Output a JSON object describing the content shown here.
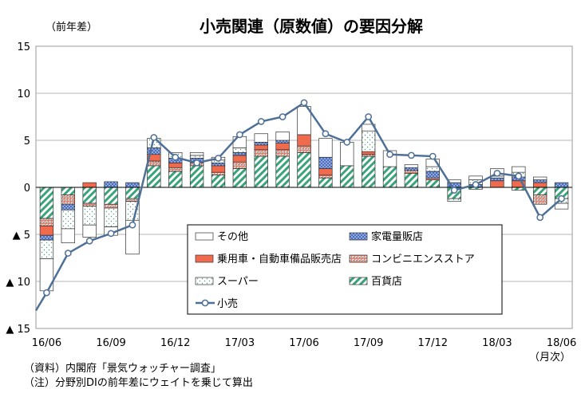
{
  "chart_data": {
    "type": "bar",
    "title": "小売関連（原数値）の要因分解",
    "ylabel": "（前年差）",
    "xlabel": "（月次）",
    "ylim": [
      -15,
      15
    ],
    "yticks": [
      {
        "v": 15,
        "label": "15"
      },
      {
        "v": 10,
        "label": "10"
      },
      {
        "v": 5,
        "label": "5"
      },
      {
        "v": 0,
        "label": "0"
      },
      {
        "v": -5,
        "label": "▲ 5"
      },
      {
        "v": -10,
        "label": "▲ 10"
      },
      {
        "v": -15,
        "label": "▲ 15"
      }
    ],
    "grid": true,
    "legend_position": "bottom-center",
    "categories": [
      "16/06",
      "16/07",
      "16/08",
      "16/09",
      "16/10",
      "16/11",
      "16/12",
      "17/01",
      "17/02",
      "17/03",
      "17/04",
      "17/05",
      "17/06",
      "17/07",
      "17/08",
      "17/09",
      "17/10",
      "17/11",
      "17/12",
      "18/01",
      "18/02",
      "18/03",
      "18/04",
      "18/05",
      "18/06"
    ],
    "xtick_labels": [
      "16/06",
      "",
      "",
      "16/09",
      "",
      "",
      "16/12",
      "",
      "",
      "17/03",
      "",
      "",
      "17/06",
      "",
      "",
      "17/09",
      "",
      "",
      "17/12",
      "",
      "",
      "18/03",
      "",
      "",
      "18/06"
    ],
    "series": [
      {
        "name": "百貨店",
        "pattern": "diag",
        "color": "#3aa37a",
        "values": [
          -3.3,
          -0.8,
          -1.7,
          -1.8,
          -1.2,
          2.3,
          1.7,
          2.3,
          1.3,
          2.0,
          3.3,
          3.3,
          3.7,
          1.0,
          2.3,
          3.3,
          2.2,
          1.5,
          0.8,
          -1.2,
          -0.2,
          0.0,
          -0.3,
          -0.8,
          -1.2
        ]
      },
      {
        "name": "コンビニエンスストア",
        "pattern": "grid",
        "color": "#e8705a",
        "values": [
          -0.8,
          -1.0,
          -0.3,
          -0.4,
          -0.3,
          0.5,
          0.4,
          0.3,
          0.3,
          0.7,
          0.7,
          0.7,
          0.7,
          0.3,
          0.0,
          0.2,
          0.0,
          0.3,
          0.2,
          0.0,
          0.0,
          0.0,
          0.0,
          -1.0,
          0.0
        ]
      },
      {
        "name": "乗用車・自動車備品販売店",
        "pattern": "solid",
        "color": "#f06a4e",
        "values": [
          -1.0,
          0.0,
          0.5,
          0.0,
          0.0,
          0.7,
          0.5,
          0.0,
          0.7,
          0.7,
          0.5,
          0.7,
          1.2,
          0.7,
          0.0,
          0.3,
          0.0,
          0.0,
          0.0,
          0.0,
          0.0,
          0.7,
          0.7,
          0.5,
          0.0
        ]
      },
      {
        "name": "家電量販店",
        "pattern": "dots",
        "color": "#4a6fc1",
        "values": [
          -0.5,
          -0.6,
          0.0,
          0.6,
          0.5,
          0.7,
          0.5,
          0.5,
          0.3,
          0.3,
          0.3,
          0.3,
          0.0,
          1.2,
          0.0,
          0.0,
          0.0,
          0.3,
          0.7,
          0.5,
          0.3,
          0.3,
          0.4,
          0.3,
          0.5
        ]
      },
      {
        "name": "スーパー",
        "pattern": "sparse",
        "color": "#4f9c80",
        "values": [
          -2.0,
          -2.0,
          -2.0,
          -2.0,
          -2.0,
          1.0,
          0.6,
          0.3,
          0.3,
          0.5,
          0.0,
          0.0,
          0.0,
          0.0,
          0.0,
          2.2,
          0.0,
          0.0,
          0.5,
          -0.3,
          0.5,
          0.2,
          0.5,
          0.0,
          -0.5
        ]
      },
      {
        "name": "その他",
        "pattern": "white",
        "color": "#ffffff",
        "values": [
          -3.4,
          -1.5,
          -1.3,
          -0.9,
          -3.6,
          0.0,
          0.0,
          0.3,
          0.3,
          1.2,
          0.9,
          0.9,
          3.0,
          2.0,
          2.5,
          0.7,
          1.7,
          0.3,
          0.8,
          0.3,
          0.4,
          0.8,
          0.6,
          0.3,
          -0.6
        ]
      }
    ],
    "line": {
      "name": "小売",
      "color": "#4e6f96",
      "values": [
        -11.2,
        -7.0,
        -5.7,
        -4.9,
        -4.0,
        5.3,
        3.2,
        2.6,
        3.1,
        5.6,
        7.0,
        7.5,
        9.0,
        5.7,
        4.8,
        7.5,
        3.5,
        3.4,
        3.3,
        -0.3,
        0.3,
        1.5,
        1.2,
        -3.2,
        -1.2
      ]
    }
  },
  "notes": [
    "（資料）内閣府「景気ウォッチャー調査」",
    "（注）分野別DIの前年差にウェイトを乗じて算出"
  ],
  "legend_order": [
    {
      "series": 5
    },
    {
      "series": 3
    },
    {
      "series": 2
    },
    {
      "series": 1
    },
    {
      "series": 4
    },
    {
      "series": 0
    },
    {
      "line": true
    }
  ]
}
